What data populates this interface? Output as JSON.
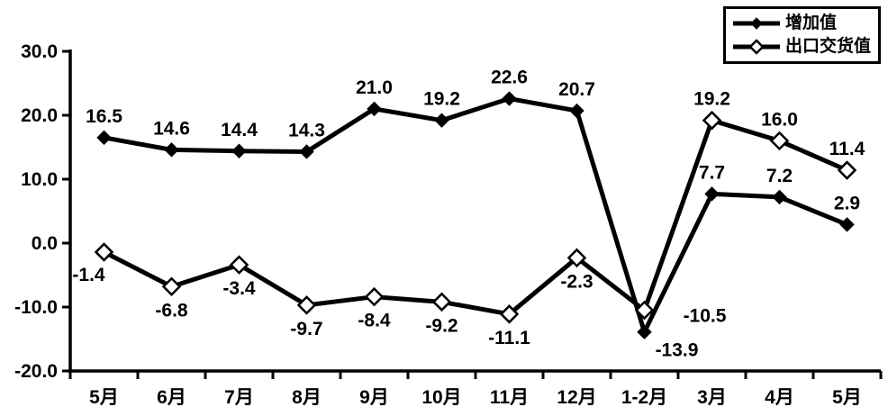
{
  "chart_data": {
    "type": "line",
    "title": "",
    "xlabel": "",
    "ylabel": "",
    "x": [
      "5月",
      "6月",
      "7月",
      "8月",
      "9月",
      "10月",
      "11月",
      "12月",
      "1-2月",
      "3月",
      "4月",
      "5月"
    ],
    "series": [
      {
        "name": "增加值",
        "marker": "filled-diamond",
        "values": [
          16.5,
          14.6,
          14.4,
          14.3,
          21.0,
          19.2,
          22.6,
          20.7,
          -13.9,
          7.7,
          7.2,
          2.9
        ],
        "label_pos": [
          "above",
          "above",
          "above",
          "above",
          "above",
          "above",
          "above",
          "above",
          "below-right",
          "above",
          "above",
          "above"
        ]
      },
      {
        "name": "出口交货值",
        "marker": "hollow-diamond",
        "values": [
          -1.4,
          -6.8,
          -3.4,
          -9.7,
          -8.4,
          -9.2,
          -11.1,
          -2.3,
          -10.5,
          19.2,
          16.0,
          11.4
        ],
        "label_pos": [
          "below-left",
          "below",
          "below",
          "below",
          "below",
          "below",
          "below",
          "below",
          "right",
          "above",
          "above",
          "above"
        ]
      }
    ],
    "ylim": [
      -20,
      30
    ],
    "yticks": [
      30,
      20,
      10,
      0,
      -10,
      -20
    ],
    "ytick_labels": [
      "30.0",
      "20.0",
      "10.0",
      "0.0",
      "-10.0",
      "-20.0"
    ],
    "grid": false,
    "legend_position": "top-right",
    "colors": {
      "line": "#000000",
      "marker_fill": "#000000",
      "hollow_marker_fill": "#ffffff",
      "background": "#ffffff",
      "text": "#000000"
    }
  }
}
